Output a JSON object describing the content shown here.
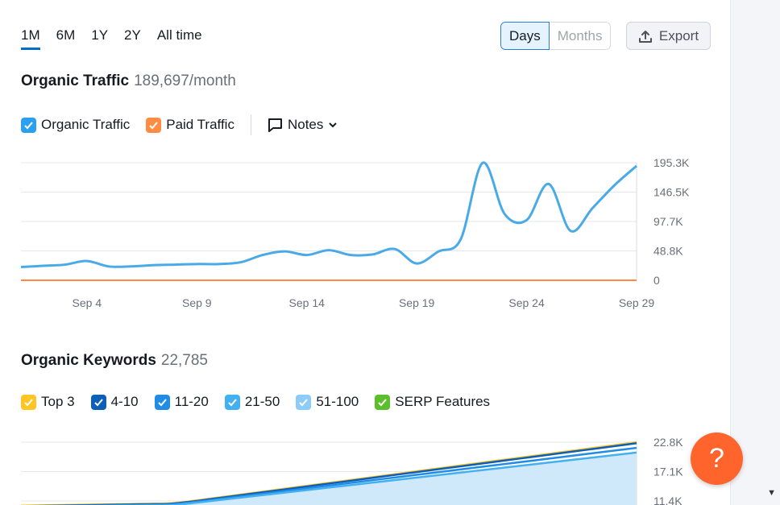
{
  "periods": [
    "1M",
    "6M",
    "1Y",
    "2Y",
    "All time"
  ],
  "active_period": "1M",
  "granularity": {
    "days": "Days",
    "months": "Months",
    "active": "Days"
  },
  "export_label": "Export",
  "traffic": {
    "title": "Organic Traffic",
    "value": "189,697/month",
    "legend": [
      {
        "label": "Organic Traffic",
        "color": "#2aa0ef"
      },
      {
        "label": "Paid Traffic",
        "color": "#ff8c42"
      }
    ],
    "notes_label": "Notes"
  },
  "keywords": {
    "title": "Organic Keywords",
    "value": "22,785",
    "legend": [
      {
        "label": "Top 3",
        "color": "#ffc524"
      },
      {
        "label": "4-10",
        "color": "#0d5eb8"
      },
      {
        "label": "11-20",
        "color": "#1f8de6"
      },
      {
        "label": "21-50",
        "color": "#43b0f2"
      },
      {
        "label": "51-100",
        "color": "#8cccf6"
      },
      {
        "label": "SERP Features",
        "color": "#5bbf2b"
      }
    ]
  },
  "help_label": "?",
  "chart_data": [
    {
      "type": "line",
      "x": [
        "Sep 1",
        "Sep 2",
        "Sep 3",
        "Sep 4",
        "Sep 5",
        "Sep 6",
        "Sep 7",
        "Sep 8",
        "Sep 9",
        "Sep 10",
        "Sep 11",
        "Sep 12",
        "Sep 13",
        "Sep 14",
        "Sep 15",
        "Sep 16",
        "Sep 17",
        "Sep 18",
        "Sep 19",
        "Sep 20",
        "Sep 21",
        "Sep 22",
        "Sep 23",
        "Sep 24",
        "Sep 25",
        "Sep 26",
        "Sep 27",
        "Sep 28",
        "Sep 29"
      ],
      "series": [
        {
          "name": "Organic Traffic",
          "color": "#4aaae8",
          "values": [
            22000,
            24000,
            26000,
            32000,
            23000,
            23000,
            25000,
            26000,
            27000,
            27000,
            30000,
            42000,
            48000,
            42000,
            50000,
            42000,
            43000,
            52000,
            28000,
            48000,
            68000,
            195000,
            110000,
            100000,
            160000,
            82000,
            120000,
            158000,
            190000
          ]
        },
        {
          "name": "Paid Traffic",
          "color": "#ff8c42",
          "values": [
            0,
            0,
            0,
            0,
            0,
            0,
            0,
            0,
            0,
            0,
            0,
            0,
            0,
            0,
            0,
            0,
            0,
            0,
            0,
            0,
            0,
            0,
            0,
            0,
            0,
            0,
            0,
            0,
            0
          ]
        }
      ],
      "x_ticks": [
        "Sep 4",
        "Sep 9",
        "Sep 14",
        "Sep 19",
        "Sep 24",
        "Sep 29"
      ],
      "y_ticks": [
        "195.3K",
        "146.5K",
        "97.7K",
        "48.8K",
        "0"
      ],
      "ylim": [
        0,
        195300
      ]
    },
    {
      "type": "area",
      "series": [
        {
          "name": "Top 3",
          "color": "#ffc524",
          "start": 10500,
          "end": 22800
        },
        {
          "name": "4-10",
          "color": "#0d5eb8",
          "start": 10400,
          "end": 22600
        },
        {
          "name": "11-20",
          "color": "#1f8de6",
          "start": 10300,
          "end": 21700
        },
        {
          "name": "21-50",
          "color": "#43b0f2",
          "start": 10200,
          "end": 20800
        }
      ],
      "y_ticks": [
        "22.8K",
        "17.1K",
        "11.4K"
      ]
    }
  ]
}
